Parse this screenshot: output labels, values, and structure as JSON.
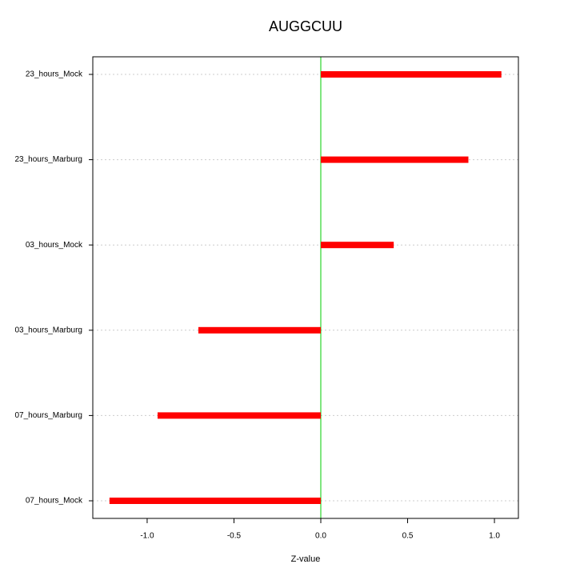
{
  "chart_data": {
    "type": "barh",
    "title": "AUGGCUU",
    "xlabel": "Z-value",
    "categories": [
      "23_hours_Mock",
      "23_hours_Marburg",
      "03_hours_Mock",
      "03_hours_Marburg",
      "07_hours_Marburg",
      "07_hours_Mock"
    ],
    "values": [
      1.04,
      0.85,
      0.42,
      -0.705,
      -0.94,
      -1.217
    ],
    "color": "#ff0000",
    "xlim": [
      -1.313,
      1.138
    ],
    "xticks": [
      {
        "value": -1.0,
        "label": "-1.0"
      },
      -0.5,
      {
        "value": 0,
        "label": "0.0"
      },
      0.5,
      {
        "value": 1.0,
        "label": "1.0"
      }
    ],
    "reference_line": 0,
    "reference_color": "#00cc00",
    "grid": true
  }
}
